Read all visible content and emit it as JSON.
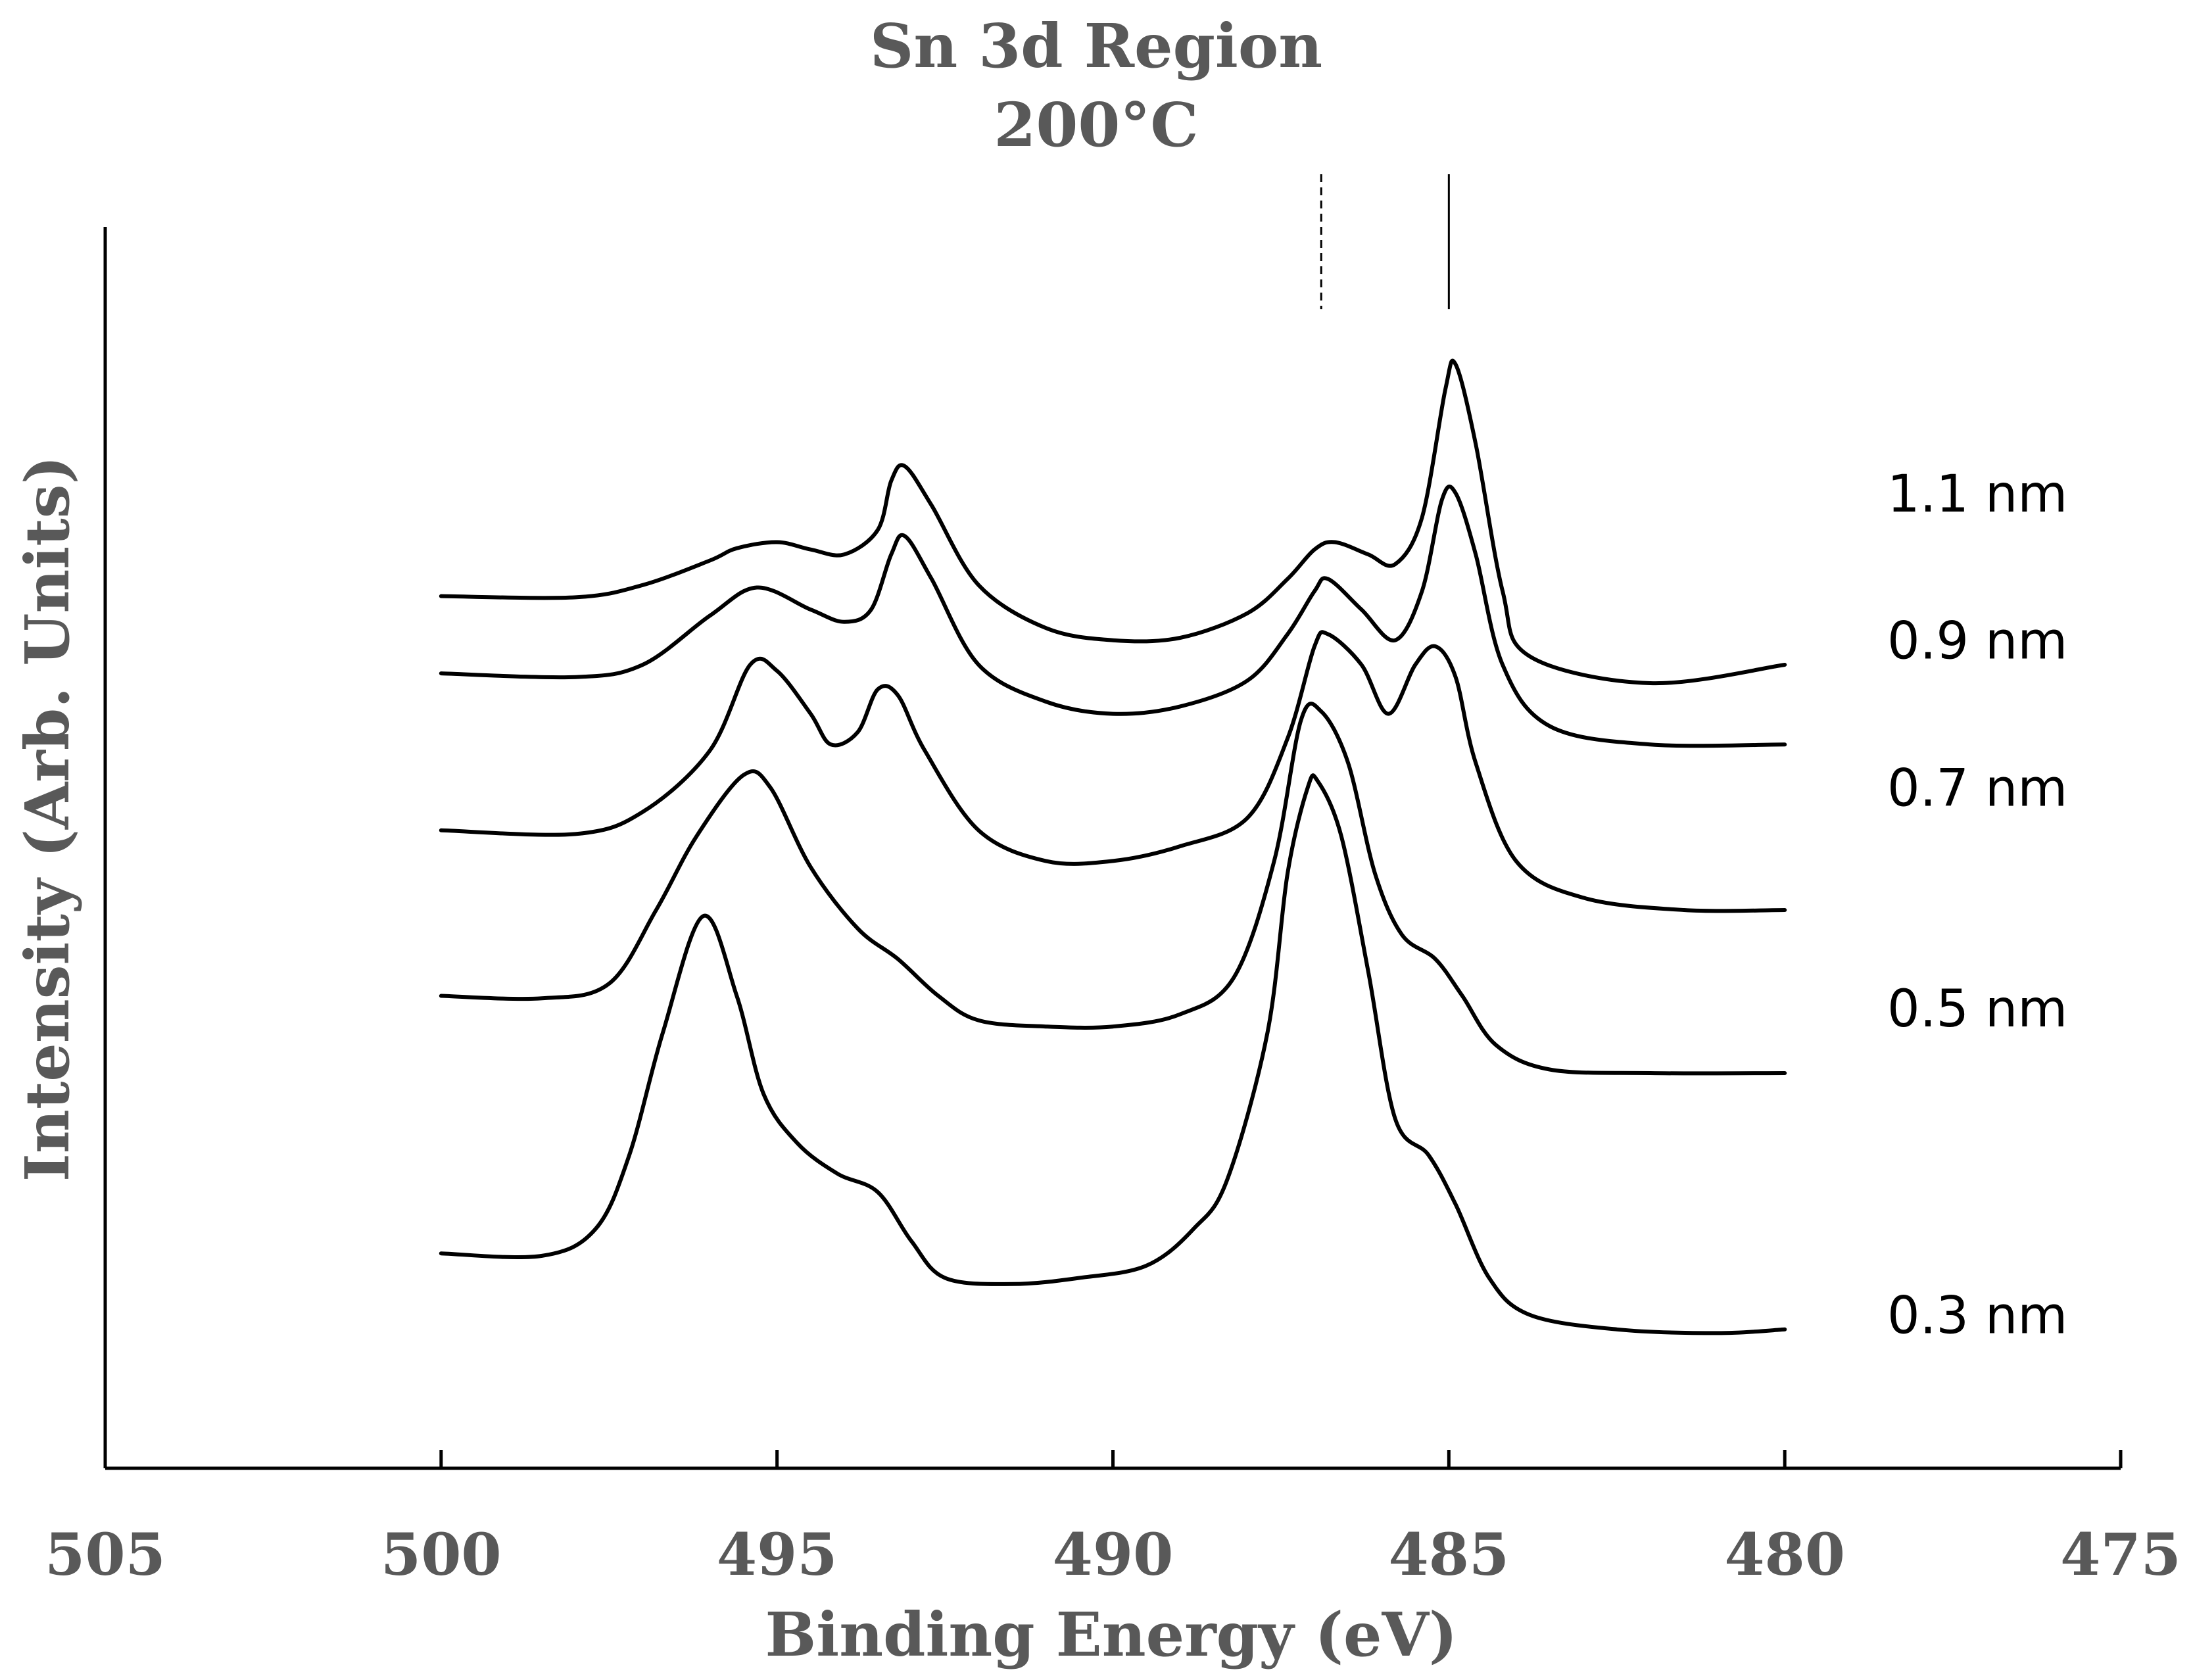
{
  "chart_data": {
    "type": "line",
    "title": "Sn 3d Region",
    "subtitle": "200°C",
    "xlabel": "Binding Energy (eV)",
    "ylabel": "Intensity (Arb. Units)",
    "xlim": [
      505,
      475
    ],
    "x_reversed": true,
    "xticks": [
      "505",
      "500",
      "495",
      "490",
      "485",
      "480",
      "475"
    ],
    "xtick_values": [
      505,
      500,
      495,
      490,
      485,
      480,
      475
    ],
    "ylim": [
      0,
      1.0
    ],
    "reference_lines": [
      {
        "x": 486.9,
        "style": "dashed",
        "y_range": [
          0.89,
          1.0
        ]
      },
      {
        "x": 485.0,
        "style": "solid",
        "y_range": [
          0.89,
          1.0
        ]
      }
    ],
    "series": [
      {
        "name": "1.1 nm",
        "label_y": 0.74,
        "points": [
          [
            500,
            0.656
          ],
          [
            498,
            0.655
          ],
          [
            497,
            0.665
          ],
          [
            496,
            0.685
          ],
          [
            495.6,
            0.695
          ],
          [
            495,
            0.7
          ],
          [
            494.5,
            0.694
          ],
          [
            494,
            0.69
          ],
          [
            493.5,
            0.71
          ],
          [
            493.3,
            0.75
          ],
          [
            493.1,
            0.762
          ],
          [
            492.7,
            0.73
          ],
          [
            492,
            0.665
          ],
          [
            491,
            0.63
          ],
          [
            490,
            0.62
          ],
          [
            489,
            0.622
          ],
          [
            488,
            0.642
          ],
          [
            487.4,
            0.67
          ],
          [
            487,
            0.694
          ],
          [
            486.7,
            0.7
          ],
          [
            486.2,
            0.69
          ],
          [
            485.8,
            0.682
          ],
          [
            485.4,
            0.72
          ],
          [
            485.05,
            0.825
          ],
          [
            484.9,
            0.845
          ],
          [
            484.6,
            0.78
          ],
          [
            484.2,
            0.66
          ],
          [
            483.8,
            0.607
          ],
          [
            482,
            0.585
          ],
          [
            480,
            0.6
          ]
        ]
      },
      {
        "name": "0.9 nm",
        "label_y": 0.62,
        "points": [
          [
            500,
            0.593
          ],
          [
            498,
            0.59
          ],
          [
            497,
            0.6
          ],
          [
            496,
            0.64
          ],
          [
            495.3,
            0.663
          ],
          [
            494.5,
            0.645
          ],
          [
            494,
            0.635
          ],
          [
            493.6,
            0.645
          ],
          [
            493.3,
            0.69
          ],
          [
            493.1,
            0.705
          ],
          [
            492.7,
            0.67
          ],
          [
            492,
            0.6
          ],
          [
            491,
            0.57
          ],
          [
            490,
            0.56
          ],
          [
            489,
            0.566
          ],
          [
            488,
            0.587
          ],
          [
            487.4,
            0.625
          ],
          [
            487,
            0.66
          ],
          [
            486.8,
            0.67
          ],
          [
            486.3,
            0.645
          ],
          [
            485.8,
            0.62
          ],
          [
            485.4,
            0.66
          ],
          [
            485.1,
            0.735
          ],
          [
            484.9,
            0.74
          ],
          [
            484.6,
            0.69
          ],
          [
            484.2,
            0.6
          ],
          [
            483.5,
            0.55
          ],
          [
            482,
            0.535
          ],
          [
            480,
            0.535
          ]
        ]
      },
      {
        "name": "0.7 nm",
        "label_y": 0.5,
        "points": [
          [
            500,
            0.465
          ],
          [
            498,
            0.462
          ],
          [
            497,
            0.48
          ],
          [
            496,
            0.53
          ],
          [
            495.4,
            0.6
          ],
          [
            495,
            0.595
          ],
          [
            494.5,
            0.56
          ],
          [
            494.2,
            0.535
          ],
          [
            493.8,
            0.545
          ],
          [
            493.5,
            0.58
          ],
          [
            493.2,
            0.575
          ],
          [
            492.8,
            0.53
          ],
          [
            492,
            0.465
          ],
          [
            491,
            0.44
          ],
          [
            490,
            0.44
          ],
          [
            489,
            0.452
          ],
          [
            488,
            0.475
          ],
          [
            487.4,
            0.54
          ],
          [
            487,
            0.615
          ],
          [
            486.8,
            0.625
          ],
          [
            486.3,
            0.6
          ],
          [
            485.9,
            0.56
          ],
          [
            485.5,
            0.6
          ],
          [
            485.2,
            0.615
          ],
          [
            484.9,
            0.59
          ],
          [
            484.6,
            0.52
          ],
          [
            484,
            0.44
          ],
          [
            483,
            0.41
          ],
          [
            481.5,
            0.4
          ],
          [
            480,
            0.4
          ]
        ]
      },
      {
        "name": "0.5 nm",
        "label_y": 0.32,
        "points": [
          [
            500,
            0.33
          ],
          [
            498.5,
            0.328
          ],
          [
            497.5,
            0.34
          ],
          [
            496.8,
            0.4
          ],
          [
            496.2,
            0.46
          ],
          [
            495.5,
            0.51
          ],
          [
            495.1,
            0.5
          ],
          [
            494.5,
            0.435
          ],
          [
            493.8,
            0.385
          ],
          [
            493.2,
            0.36
          ],
          [
            492.6,
            0.33
          ],
          [
            492,
            0.31
          ],
          [
            491,
            0.305
          ],
          [
            490,
            0.305
          ],
          [
            489,
            0.315
          ],
          [
            488.2,
            0.345
          ],
          [
            487.6,
            0.44
          ],
          [
            487.2,
            0.555
          ],
          [
            486.9,
            0.562
          ],
          [
            486.5,
            0.52
          ],
          [
            486.1,
            0.43
          ],
          [
            485.7,
            0.38
          ],
          [
            485.2,
            0.36
          ],
          [
            484.8,
            0.33
          ],
          [
            484.3,
            0.29
          ],
          [
            483.5,
            0.27
          ],
          [
            482,
            0.267
          ],
          [
            480,
            0.267
          ]
        ]
      },
      {
        "name": "0.3 nm",
        "label_y": 0.07,
        "points": [
          [
            500,
            0.12
          ],
          [
            498.5,
            0.118
          ],
          [
            497.7,
            0.14
          ],
          [
            497.2,
            0.2
          ],
          [
            496.7,
            0.3
          ],
          [
            496.1,
            0.395
          ],
          [
            495.6,
            0.33
          ],
          [
            495.2,
            0.25
          ],
          [
            494.7,
            0.21
          ],
          [
            494.1,
            0.185
          ],
          [
            493.5,
            0.17
          ],
          [
            493,
            0.13
          ],
          [
            492.5,
            0.1
          ],
          [
            491.5,
            0.095
          ],
          [
            490.5,
            0.1
          ],
          [
            489.5,
            0.11
          ],
          [
            488.8,
            0.14
          ],
          [
            488.3,
            0.18
          ],
          [
            487.7,
            0.3
          ],
          [
            487.4,
            0.43
          ],
          [
            487.1,
            0.5
          ],
          [
            486.95,
            0.505
          ],
          [
            486.6,
            0.46
          ],
          [
            486.2,
            0.35
          ],
          [
            485.8,
            0.23
          ],
          [
            485.3,
            0.2
          ],
          [
            484.9,
            0.16
          ],
          [
            484.4,
            0.1
          ],
          [
            483.8,
            0.07
          ],
          [
            482.5,
            0.058
          ],
          [
            481,
            0.055
          ],
          [
            480,
            0.058
          ]
        ]
      }
    ]
  }
}
